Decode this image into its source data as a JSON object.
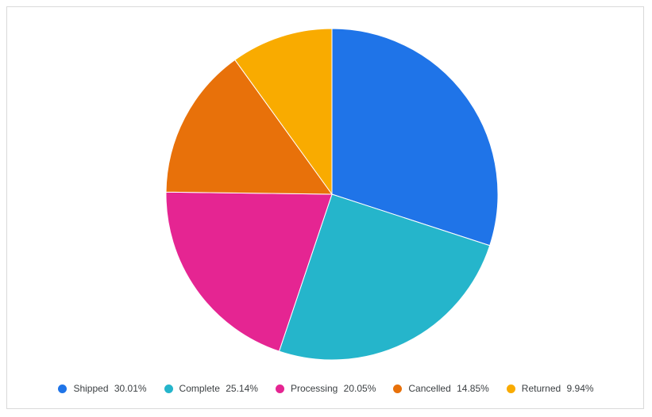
{
  "chart_data": {
    "type": "pie",
    "title": "",
    "categories": [
      "Shipped",
      "Complete",
      "Processing",
      "Cancelled",
      "Returned"
    ],
    "values": [
      30.01,
      25.14,
      20.05,
      14.85,
      9.94
    ],
    "value_labels": [
      "30.01%",
      "25.14%",
      "20.05%",
      "14.85%",
      "9.94%"
    ],
    "colors": [
      "#1f74e8",
      "#25b5cb",
      "#e52592",
      "#e8710a",
      "#f9ab00"
    ],
    "legend_position": "bottom"
  }
}
